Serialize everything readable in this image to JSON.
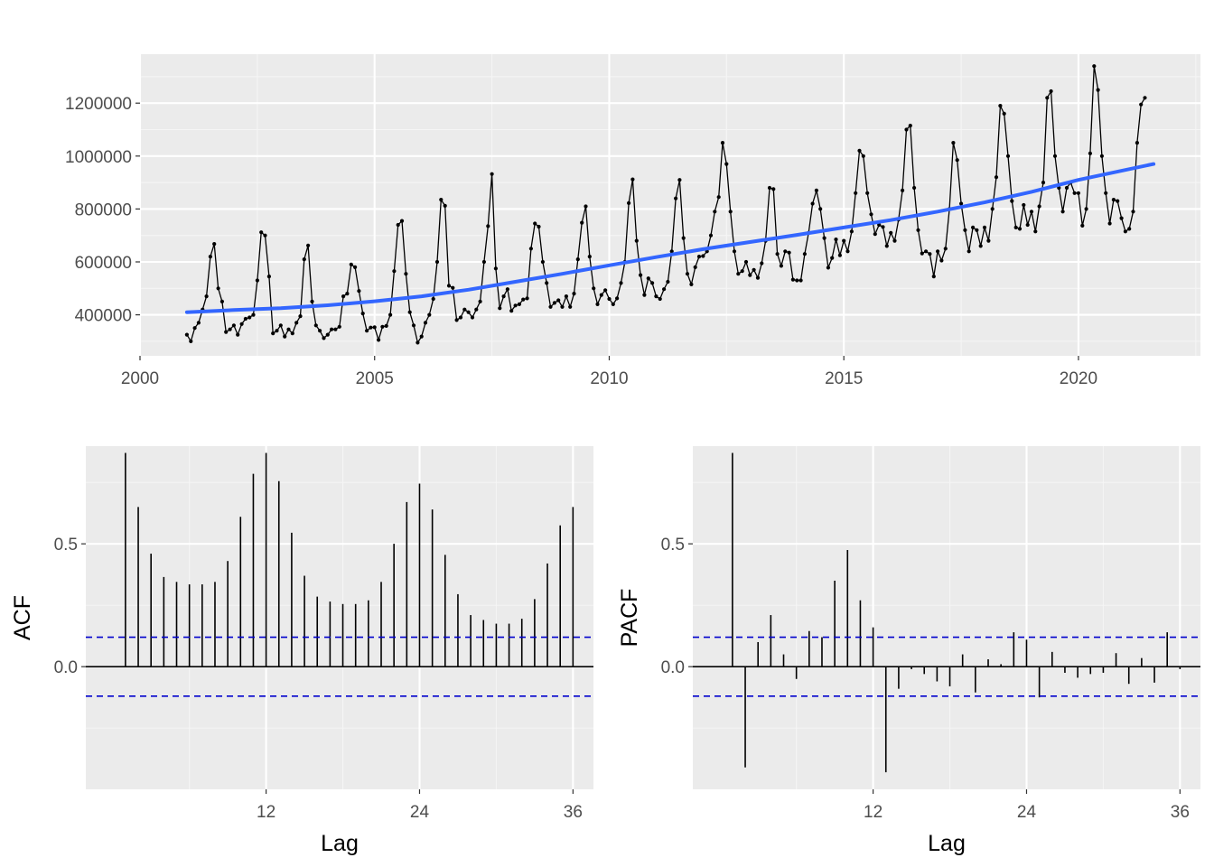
{
  "colors": {
    "panel_bg": "#EBEBEB",
    "grid_major": "#FFFFFF",
    "grid_minor": "#F5F5F5",
    "series": "#000000",
    "trend": "#3366FF",
    "conf_band": "#0000CC",
    "tick_text": "#4D4D4D"
  },
  "chart_data": [
    {
      "id": "time-series",
      "type": "line",
      "title": "",
      "xlabel": "",
      "ylabel": "",
      "xlim": [
        2000,
        2022.6
      ],
      "ylim": [
        245000,
        1385000
      ],
      "x_ticks": [
        2000,
        2005,
        2010,
        2015,
        2020
      ],
      "y_ticks": [
        400000,
        600000,
        800000,
        1000000,
        1200000
      ],
      "x_tick_labels": [
        "2000",
        "2005",
        "2010",
        "2015",
        "2020"
      ],
      "y_tick_labels": [
        "400000",
        "600000",
        "800000",
        "1000000",
        "1200000"
      ],
      "grid": true,
      "start": "2001-01",
      "frequency": "monthly",
      "values": [
        325000,
        300000,
        350000,
        370000,
        420000,
        470000,
        620000,
        668000,
        500000,
        450000,
        335000,
        345000,
        360000,
        325000,
        365000,
        385000,
        390000,
        400000,
        530000,
        712000,
        700000,
        545000,
        330000,
        340000,
        360000,
        318000,
        345000,
        330000,
        370000,
        395000,
        610000,
        662000,
        450000,
        360000,
        340000,
        312000,
        325000,
        345000,
        345000,
        355000,
        470000,
        480000,
        590000,
        580000,
        490000,
        405000,
        340000,
        352000,
        353000,
        305000,
        355000,
        358000,
        400000,
        565000,
        740000,
        755000,
        555000,
        410000,
        360000,
        295000,
        318000,
        370000,
        400000,
        460000,
        600000,
        835000,
        812000,
        510000,
        502000,
        380000,
        390000,
        420000,
        410000,
        390000,
        420000,
        450000,
        600000,
        735000,
        932000,
        575000,
        425000,
        470000,
        497000,
        415000,
        435000,
        440000,
        458000,
        462000,
        650000,
        745000,
        733000,
        600000,
        520000,
        430000,
        445000,
        455000,
        430000,
        470000,
        430000,
        480000,
        610000,
        748000,
        810000,
        620000,
        500000,
        440000,
        475000,
        493000,
        460000,
        440000,
        462000,
        520000,
        600000,
        822000,
        912000,
        680000,
        550000,
        475000,
        538000,
        520000,
        470000,
        460000,
        497000,
        525000,
        640000,
        840000,
        910000,
        690000,
        555000,
        515000,
        580000,
        620000,
        622000,
        640000,
        700000,
        790000,
        845000,
        1050000,
        970000,
        790000,
        640000,
        555000,
        565000,
        600000,
        550000,
        570000,
        540000,
        595000,
        680000,
        880000,
        875000,
        630000,
        585000,
        640000,
        635000,
        533000,
        530000,
        530000,
        630000,
        710000,
        820000,
        870000,
        800000,
        690000,
        578000,
        615000,
        685000,
        625000,
        680000,
        640000,
        715000,
        860000,
        1020000,
        1000000,
        860000,
        780000,
        705000,
        740000,
        732000,
        660000,
        710000,
        680000,
        760000,
        870000,
        1100000,
        1115000,
        880000,
        720000,
        632000,
        640000,
        630000,
        545000,
        640000,
        605000,
        650000,
        800000,
        1050000,
        985000,
        820000,
        720000,
        640000,
        730000,
        720000,
        660000,
        730000,
        680000,
        800000,
        920000,
        1190000,
        1160000,
        1000000,
        830000,
        730000,
        725000,
        815000,
        740000,
        790000,
        715000,
        810000,
        900000,
        1220000,
        1245000,
        1000000,
        880000,
        790000,
        880000,
        900000,
        860000,
        860000,
        737000,
        800000,
        1010000,
        1340000,
        1250000,
        1000000,
        860000,
        745000,
        835000,
        830000,
        765000,
        715000,
        725000,
        790000,
        1050000,
        1195000,
        1220000
      ],
      "trend_points": [
        [
          2001.0,
          410000
        ],
        [
          2002.0,
          418000
        ],
        [
          2003.0,
          425000
        ],
        [
          2004.0,
          436000
        ],
        [
          2005.0,
          451000
        ],
        [
          2006.0,
          470000
        ],
        [
          2007.0,
          495000
        ],
        [
          2008.0,
          525000
        ],
        [
          2009.0,
          555000
        ],
        [
          2010.0,
          587000
        ],
        [
          2011.0,
          618000
        ],
        [
          2012.0,
          648000
        ],
        [
          2013.0,
          675000
        ],
        [
          2014.0,
          702000
        ],
        [
          2015.0,
          730000
        ],
        [
          2016.0,
          758000
        ],
        [
          2017.0,
          790000
        ],
        [
          2018.0,
          825000
        ],
        [
          2019.0,
          865000
        ],
        [
          2020.0,
          910000
        ],
        [
          2021.6,
          970000
        ]
      ]
    },
    {
      "id": "acf",
      "type": "bar",
      "title": "",
      "xlabel": "Lag",
      "ylabel": "ACF",
      "xlim": [
        -2.1,
        37.6
      ],
      "ylim": [
        -0.4993,
        0.8976
      ],
      "x_ticks": [
        12,
        24,
        36
      ],
      "x_tick_labels": [
        "12",
        "24",
        "36"
      ],
      "y_ticks": [
        0.0,
        0.5
      ],
      "y_tick_labels": [
        "0.0",
        "0.5"
      ],
      "grid": true,
      "conf_limit": 0.12,
      "lags": [
        1,
        2,
        3,
        4,
        5,
        6,
        7,
        8,
        9,
        10,
        11,
        12,
        13,
        14,
        15,
        16,
        17,
        18,
        19,
        20,
        21,
        22,
        23,
        24,
        25,
        26,
        27,
        28,
        29,
        30,
        31,
        32,
        33,
        34,
        35,
        36
      ],
      "values": [
        0.87,
        0.65,
        0.46,
        0.365,
        0.345,
        0.335,
        0.335,
        0.345,
        0.43,
        0.61,
        0.785,
        0.87,
        0.755,
        0.545,
        0.37,
        0.285,
        0.265,
        0.255,
        0.255,
        0.27,
        0.345,
        0.5,
        0.67,
        0.745,
        0.64,
        0.455,
        0.295,
        0.21,
        0.19,
        0.175,
        0.175,
        0.195,
        0.275,
        0.42,
        0.575,
        0.65
      ]
    },
    {
      "id": "pacf",
      "type": "bar",
      "title": "",
      "xlabel": "Lag",
      "ylabel": "PACF",
      "xlim": [
        -2.1,
        37.6
      ],
      "ylim": [
        -0.4993,
        0.8976
      ],
      "x_ticks": [
        12,
        24,
        36
      ],
      "x_tick_labels": [
        "12",
        "24",
        "36"
      ],
      "y_ticks": [
        0.0,
        0.5
      ],
      "y_tick_labels": [
        "0.0",
        "0.5"
      ],
      "grid": true,
      "conf_limit": 0.12,
      "lags": [
        1,
        2,
        3,
        4,
        5,
        6,
        7,
        8,
        9,
        10,
        11,
        12,
        13,
        14,
        15,
        16,
        17,
        18,
        19,
        20,
        21,
        22,
        23,
        24,
        25,
        26,
        27,
        28,
        29,
        30,
        31,
        32,
        33,
        34,
        35,
        36
      ],
      "values": [
        0.87,
        -0.41,
        0.1,
        0.21,
        0.05,
        -0.05,
        0.145,
        0.12,
        0.35,
        0.475,
        0.27,
        0.16,
        -0.43,
        -0.09,
        -0.01,
        -0.03,
        -0.06,
        -0.08,
        0.05,
        -0.105,
        0.03,
        0.01,
        0.14,
        0.11,
        -0.125,
        0.06,
        -0.025,
        -0.045,
        -0.03,
        -0.025,
        0.055,
        -0.07,
        0.035,
        -0.065,
        0.14,
        -0.01
      ]
    }
  ]
}
